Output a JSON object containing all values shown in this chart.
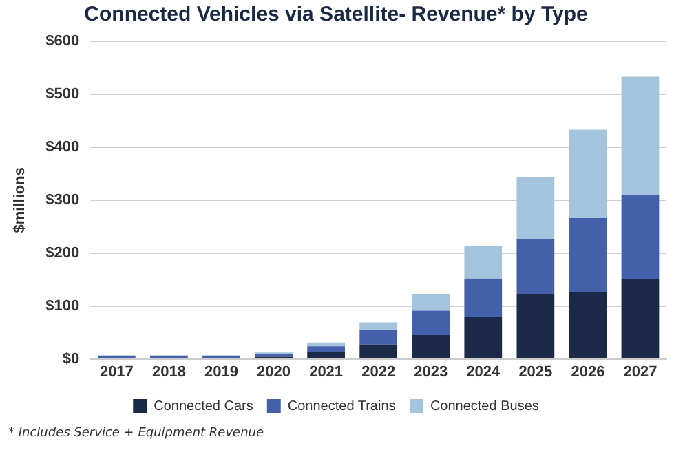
{
  "chart_data": {
    "type": "bar",
    "title": "Connected Vehicles via Satellite- Revenue* by Type",
    "ylabel": "$millions",
    "categories": [
      "2017",
      "2018",
      "2019",
      "2020",
      "2021",
      "2022",
      "2023",
      "2024",
      "2025",
      "2026",
      "2027"
    ],
    "series": [
      {
        "name": "Connected Cars",
        "color": "#1c2a4a",
        "values": [
          null,
          null,
          null,
          4,
          13,
          27,
          45,
          79,
          123,
          127,
          151
        ]
      },
      {
        "name": "Connected Trains",
        "color": "#4560ab",
        "values": [
          6,
          6,
          6,
          5,
          11,
          28,
          46,
          73,
          104,
          139,
          159
        ]
      },
      {
        "name": "Connected Buses",
        "color": "#a3c4dc",
        "values": [
          1,
          1,
          1,
          3,
          7,
          14,
          32,
          62,
          117,
          167,
          223
        ]
      }
    ],
    "stacked": true,
    "ylim": [
      0,
      600
    ],
    "yticks": [
      {
        "value": 0,
        "label": "$0"
      },
      {
        "value": 100,
        "label": "$100"
      },
      {
        "value": 200,
        "label": "$200"
      },
      {
        "value": 300,
        "label": "$300"
      },
      {
        "value": 400,
        "label": "$400"
      },
      {
        "value": 500,
        "label": "$500"
      },
      {
        "value": 600,
        "label": "$600"
      }
    ],
    "grid": "y",
    "legend": "bottom",
    "annotations": [
      "* Includes Service + Equipment Revenue"
    ]
  }
}
